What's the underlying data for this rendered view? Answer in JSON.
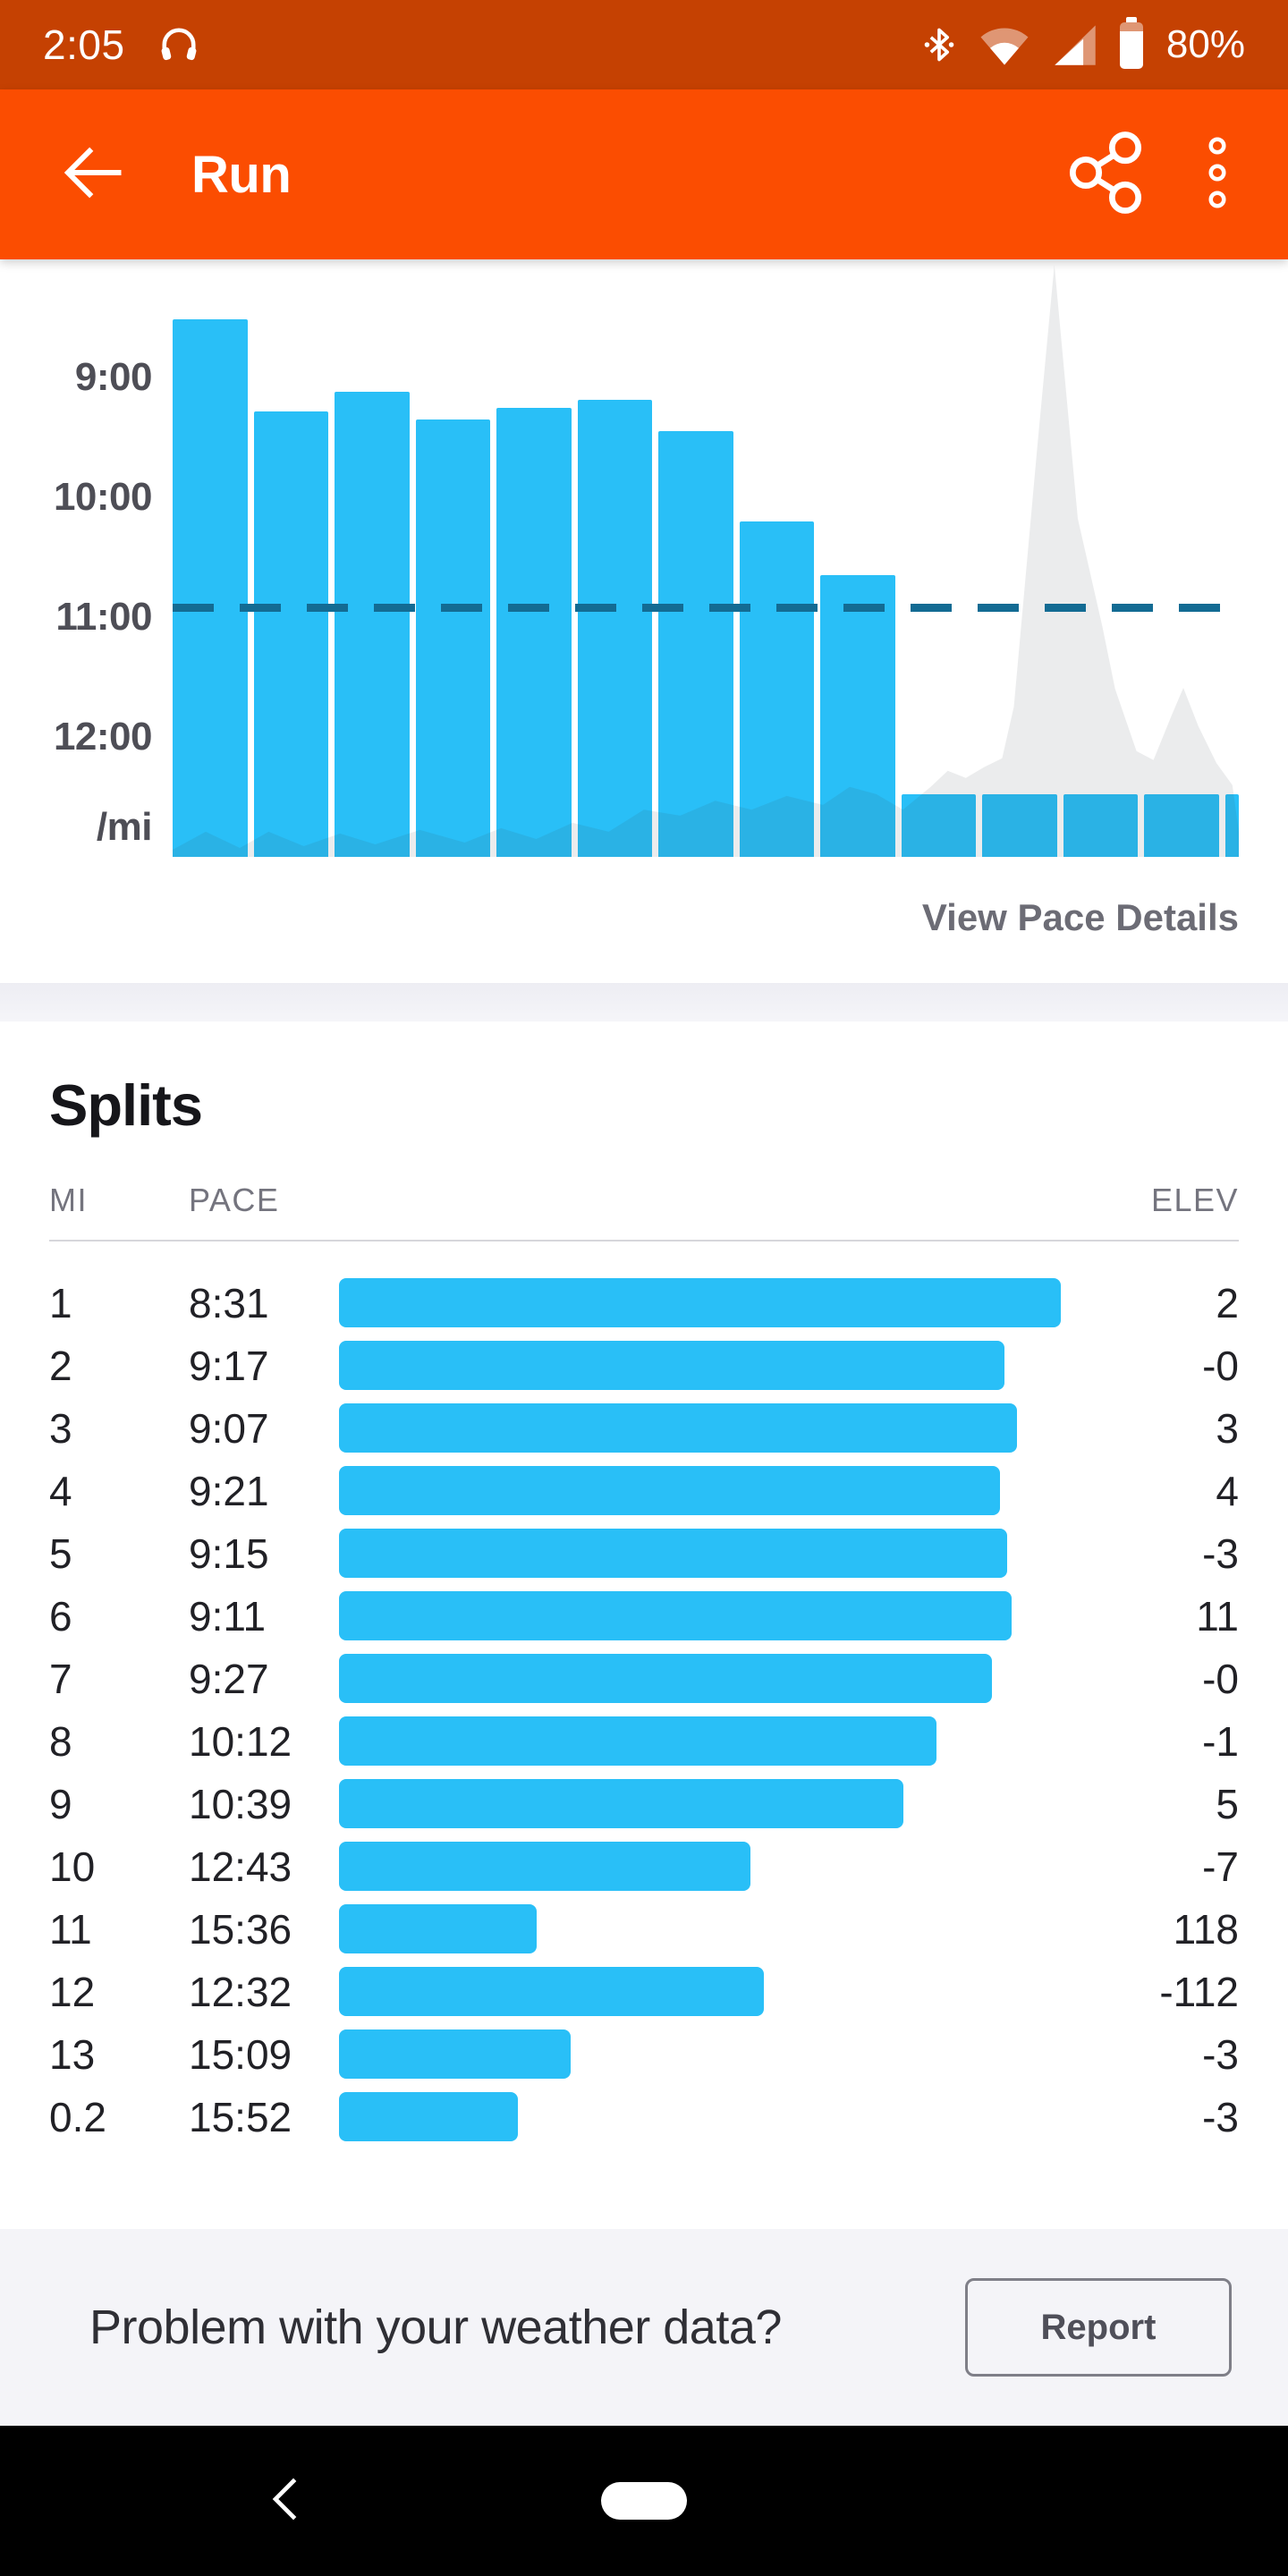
{
  "colors": {
    "status_bar_bg": "#C54102",
    "header_bg": "#FB4D01",
    "accent_blue": "#29BFF7",
    "avg_line": "#136B93",
    "nav_bg": "#000000"
  },
  "status_bar": {
    "time": "2:05",
    "battery_label": "80%"
  },
  "header": {
    "title": "Run"
  },
  "chart_data": {
    "type": "bar",
    "title": "Pace per mile split with elevation overlay",
    "categories": [
      "1",
      "2",
      "3",
      "4",
      "5",
      "6",
      "7",
      "8",
      "9",
      "10",
      "11",
      "12",
      "13",
      "0.2"
    ],
    "paces": [
      "8:31",
      "9:17",
      "9:07",
      "9:21",
      "9:15",
      "9:11",
      "9:27",
      "10:12",
      "10:39",
      "12:43",
      "15:36",
      "12:32",
      "15:09",
      "15:52"
    ],
    "y_axis": {
      "ticks": [
        "9:00",
        "10:00",
        "11:00",
        "12:00"
      ],
      "unit_label": "/mi",
      "note": "pace axis, faster at top; bars clipped below ~12:30"
    },
    "average_line_pace": "10:55",
    "bar_color": "#29BFF7",
    "grid": false,
    "legend": false,
    "elevation_profile_norm": [
      [
        0,
        98.8
      ],
      [
        3.1,
        95.8
      ],
      [
        6.3,
        98.5
      ],
      [
        9.0,
        95.8
      ],
      [
        12.3,
        98.2
      ],
      [
        15.7,
        96.1
      ],
      [
        19.0,
        97.9
      ],
      [
        23.2,
        95.5
      ],
      [
        27.4,
        97.6
      ],
      [
        30.8,
        95.2
      ],
      [
        34.1,
        97.0
      ],
      [
        37.5,
        94.3
      ],
      [
        40.9,
        95.8
      ],
      [
        44.2,
        92.1
      ],
      [
        47.6,
        93.1
      ],
      [
        50.9,
        90.6
      ],
      [
        54.3,
        92.1
      ],
      [
        57.6,
        89.8
      ],
      [
        61.0,
        91.3
      ],
      [
        63.5,
        88.3
      ],
      [
        66.0,
        89.5
      ],
      [
        68.5,
        92.1
      ],
      [
        71.1,
        88.3
      ],
      [
        72.7,
        85.6
      ],
      [
        74.4,
        86.8
      ],
      [
        76.1,
        85.0
      ],
      [
        77.8,
        83.5
      ],
      [
        78.9,
        74.9
      ],
      [
        81.1,
        31.4
      ],
      [
        82.7,
        0.9
      ],
      [
        84.9,
        43.4
      ],
      [
        87.2,
        61.4
      ],
      [
        88.4,
        71.9
      ],
      [
        90.4,
        82.3
      ],
      [
        92.0,
        83.8
      ],
      [
        93.7,
        76.3
      ],
      [
        94.8,
        71.7
      ],
      [
        96.2,
        78.1
      ],
      [
        97.9,
        84.3
      ],
      [
        99.4,
        88.0
      ],
      [
        100,
        95.8
      ]
    ]
  },
  "chart_footer": {
    "link_label": "View Pace Details"
  },
  "splits": {
    "title": "Splits",
    "columns": [
      "MI",
      "PACE",
      "ELEV"
    ],
    "rows": [
      {
        "mi": "1",
        "pace": "8:31",
        "elev": "2"
      },
      {
        "mi": "2",
        "pace": "9:17",
        "elev": "-0"
      },
      {
        "mi": "3",
        "pace": "9:07",
        "elev": "3"
      },
      {
        "mi": "4",
        "pace": "9:21",
        "elev": "4"
      },
      {
        "mi": "5",
        "pace": "9:15",
        "elev": "-3"
      },
      {
        "mi": "6",
        "pace": "9:11",
        "elev": "11"
      },
      {
        "mi": "7",
        "pace": "9:27",
        "elev": "-0"
      },
      {
        "mi": "8",
        "pace": "10:12",
        "elev": "-1"
      },
      {
        "mi": "9",
        "pace": "10:39",
        "elev": "5"
      },
      {
        "mi": "10",
        "pace": "12:43",
        "elev": "-7"
      },
      {
        "mi": "11",
        "pace": "15:36",
        "elev": "118"
      },
      {
        "mi": "12",
        "pace": "12:32",
        "elev": "-112"
      },
      {
        "mi": "13",
        "pace": "15:09",
        "elev": "-3"
      },
      {
        "mi": "0.2",
        "pace": "15:52",
        "elev": "-3"
      }
    ]
  },
  "weather": {
    "question": "Problem with your weather data?",
    "report_label": "Report"
  }
}
